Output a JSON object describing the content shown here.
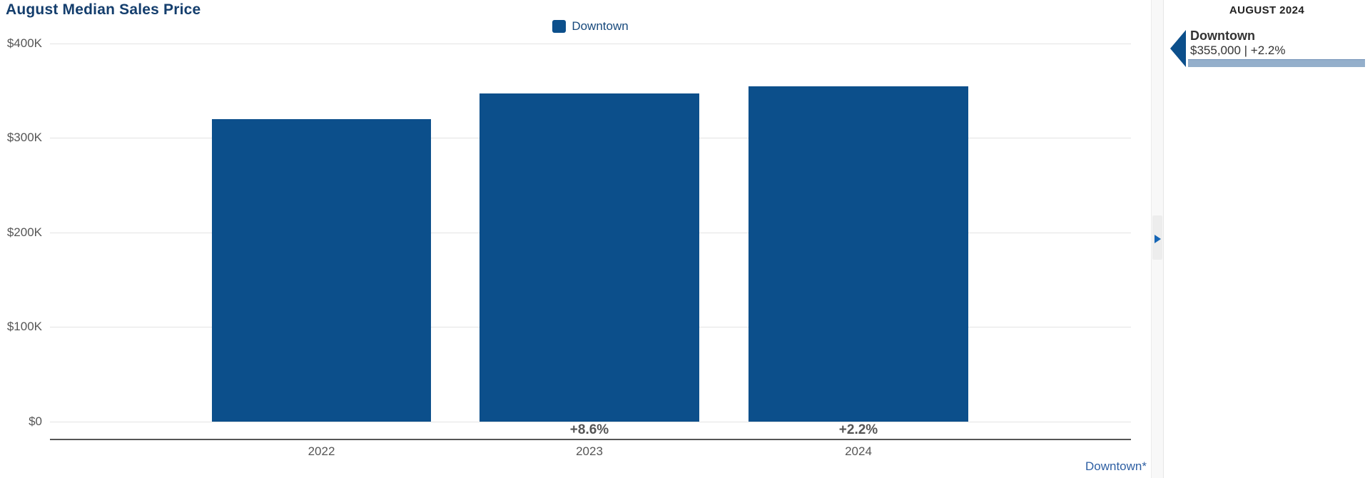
{
  "page": {
    "title": "August Median Sales Price"
  },
  "legend": {
    "items": [
      {
        "label": "Downtown",
        "color": "#0C4F8B"
      }
    ]
  },
  "chart_data": {
    "type": "bar",
    "title": "August Median Sales Price",
    "series_name": "Downtown",
    "categories": [
      "2022",
      "2023",
      "2024"
    ],
    "values": [
      320000,
      347500,
      355000
    ],
    "value_labels": [
      "$320,000",
      "$347,500",
      "$355,000"
    ],
    "pct_change_labels": [
      "",
      "+8.6%",
      "+2.2%"
    ],
    "ylim": [
      0,
      400000
    ],
    "y_ticks": [
      "$400K",
      "$300K",
      "$200K",
      "$100K",
      "$0"
    ],
    "grid": true,
    "legend_position": "top-center",
    "bar_color": "#0C4F8B"
  },
  "footnote": "Downtown*",
  "sidebar": {
    "header": "AUGUST 2024",
    "entries": [
      {
        "name": "Downtown",
        "stat": "$355,000 | +2.2%",
        "value": "$355,000",
        "pct": "+2.2%",
        "bar_color": "#94AFCB",
        "marker_color": "#0C4F8B"
      }
    ]
  },
  "colors": {
    "title": "#143E6D",
    "bar": "#0C4F8B",
    "axis_text": "#555555",
    "value_text": "#333333",
    "footnote_link": "#2E5FA3",
    "expander_arrow": "#1565B5"
  }
}
